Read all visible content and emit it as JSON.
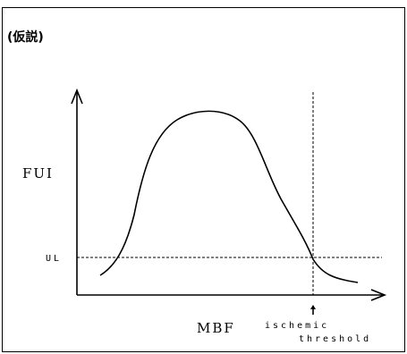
{
  "figure": {
    "title": "(仮説)",
    "y_axis_label": "FUI",
    "x_axis_label": "MBF",
    "threshold_level_label": "UL",
    "threshold_marker_line1": "ischemic",
    "threshold_marker_line2": "threshold",
    "colors": {
      "line": "#000000",
      "background": "#ffffff"
    }
  }
}
